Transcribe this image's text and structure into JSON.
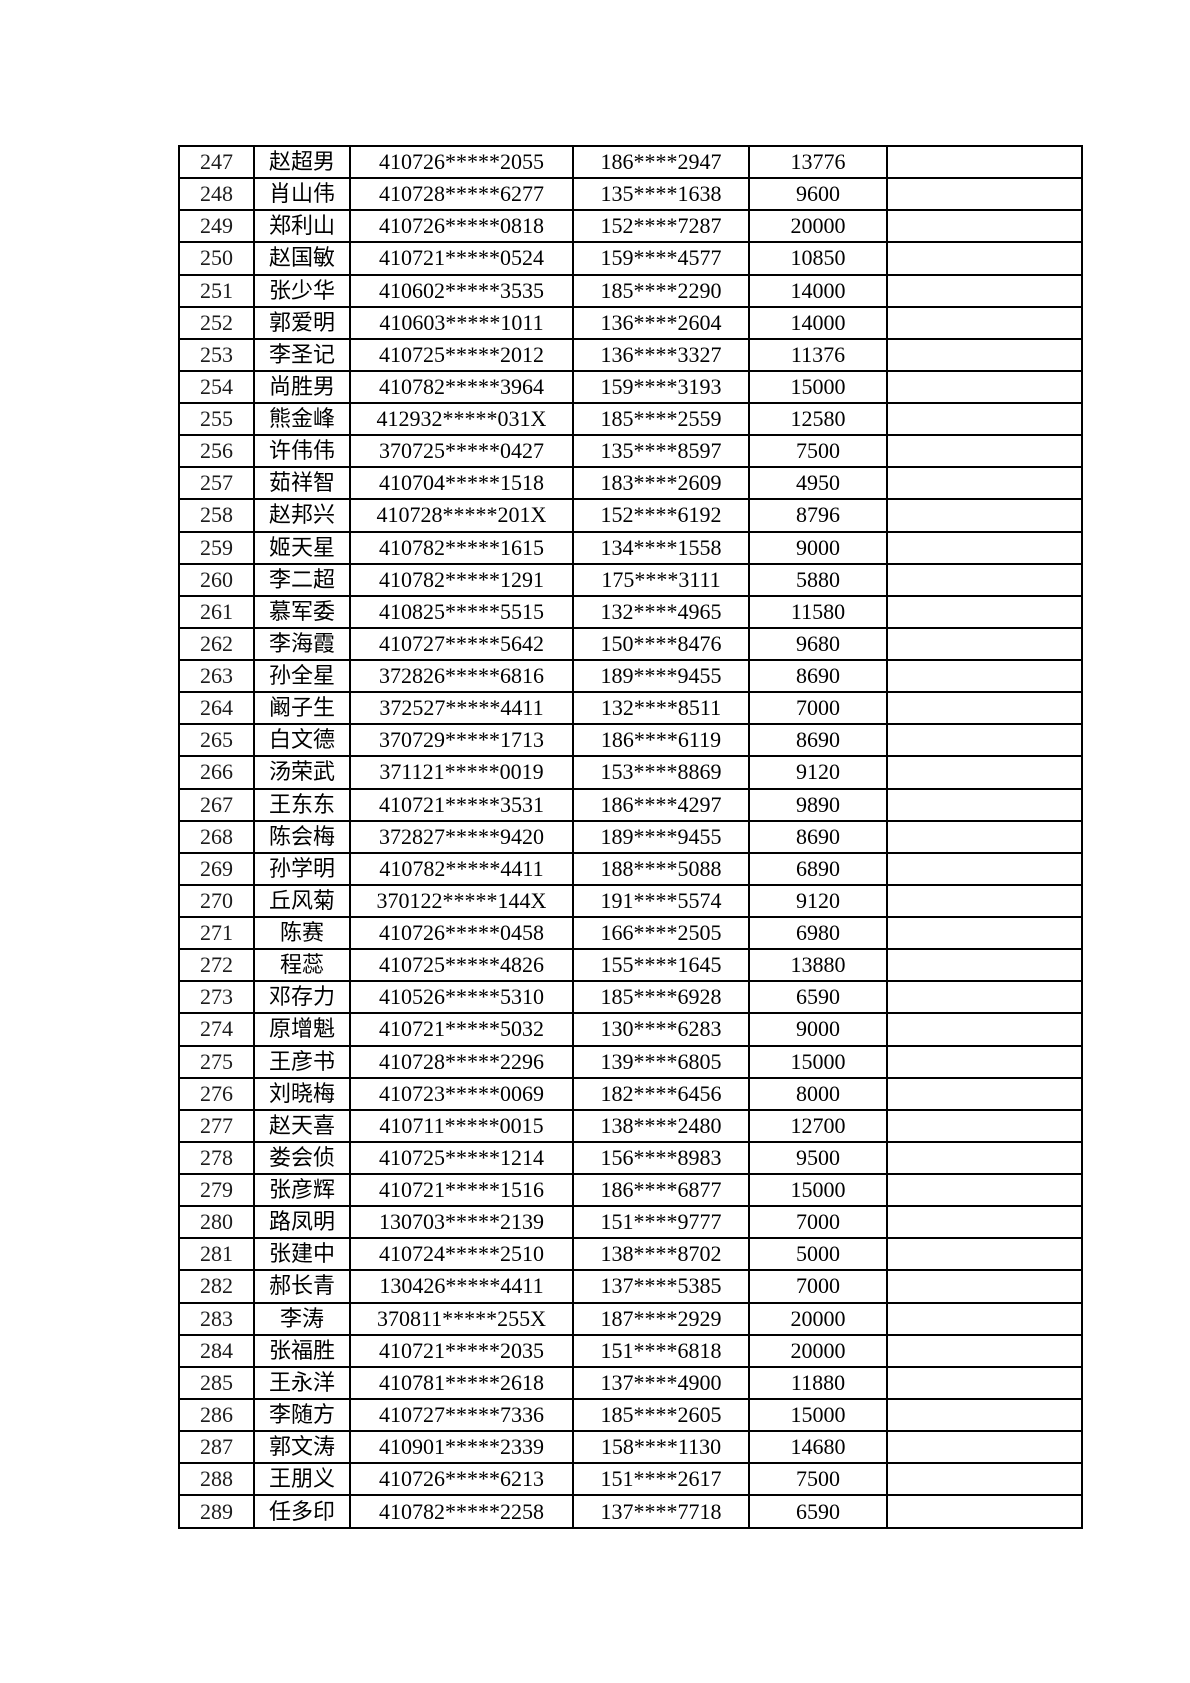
{
  "colors": {
    "page_background": "#ffffff",
    "table_border": "#000000",
    "text": "#000000"
  },
  "table": {
    "first_row_number": "247",
    "last_row_number": "289",
    "rows": [
      [
        "247",
        "赵超男",
        "410726*****2055",
        "186****2947",
        "13776",
        ""
      ],
      [
        "248",
        "肖山伟",
        "410728*****6277",
        "135****1638",
        "9600",
        ""
      ],
      [
        "249",
        "郑利山",
        "410726*****0818",
        "152****7287",
        "20000",
        ""
      ],
      [
        "250",
        "赵国敏",
        "410721*****0524",
        "159****4577",
        "10850",
        ""
      ],
      [
        "251",
        "张少华",
        "410602*****3535",
        "185****2290",
        "14000",
        ""
      ],
      [
        "252",
        "郭爱明",
        "410603*****1011",
        "136****2604",
        "14000",
        ""
      ],
      [
        "253",
        "李圣记",
        "410725*****2012",
        "136****3327",
        "11376",
        ""
      ],
      [
        "254",
        "尚胜男",
        "410782*****3964",
        "159****3193",
        "15000",
        ""
      ],
      [
        "255",
        "熊金峰",
        "412932*****031X",
        "185****2559",
        "12580",
        ""
      ],
      [
        "256",
        "许伟伟",
        "370725*****0427",
        "135****8597",
        "7500",
        ""
      ],
      [
        "257",
        "茹祥智",
        "410704*****1518",
        "183****2609",
        "4950",
        ""
      ],
      [
        "258",
        "赵邦兴",
        "410728*****201X",
        "152****6192",
        "8796",
        ""
      ],
      [
        "259",
        "姬天星",
        "410782*****1615",
        "134****1558",
        "9000",
        ""
      ],
      [
        "260",
        "李二超",
        "410782*****1291",
        "175****3111",
        "5880",
        ""
      ],
      [
        "261",
        "慕军委",
        "410825*****5515",
        "132****4965",
        "11580",
        ""
      ],
      [
        "262",
        "李海霞",
        "410727*****5642",
        "150****8476",
        "9680",
        ""
      ],
      [
        "263",
        "孙全星",
        "372826*****6816",
        "189****9455",
        "8690",
        ""
      ],
      [
        "264",
        "阚子生",
        "372527*****4411",
        "132****8511",
        "7000",
        ""
      ],
      [
        "265",
        "白文德",
        "370729*****1713",
        "186****6119",
        "8690",
        ""
      ],
      [
        "266",
        "汤荣武",
        "371121*****0019",
        "153****8869",
        "9120",
        ""
      ],
      [
        "267",
        "王东东",
        "410721*****3531",
        "186****4297",
        "9890",
        ""
      ],
      [
        "268",
        "陈会梅",
        "372827*****9420",
        "189****9455",
        "8690",
        ""
      ],
      [
        "269",
        "孙学明",
        "410782*****4411",
        "188****5088",
        "6890",
        ""
      ],
      [
        "270",
        "丘风菊",
        "370122*****144X",
        "191****5574",
        "9120",
        ""
      ],
      [
        "271",
        "陈赛",
        "410726*****0458",
        "166****2505",
        "6980",
        ""
      ],
      [
        "272",
        "程蕊",
        "410725*****4826",
        "155****1645",
        "13880",
        ""
      ],
      [
        "273",
        "邓存力",
        "410526*****5310",
        "185****6928",
        "6590",
        ""
      ],
      [
        "274",
        "原增魁",
        "410721*****5032",
        "130****6283",
        "9000",
        ""
      ],
      [
        "275",
        "王彦书",
        "410728*****2296",
        "139****6805",
        "15000",
        ""
      ],
      [
        "276",
        "刘晓梅",
        "410723*****0069",
        "182****6456",
        "8000",
        ""
      ],
      [
        "277",
        "赵天喜",
        "410711*****0015",
        "138****2480",
        "12700",
        ""
      ],
      [
        "278",
        "娄会侦",
        "410725*****1214",
        "156****8983",
        "9500",
        ""
      ],
      [
        "279",
        "张彦辉",
        "410721*****1516",
        "186****6877",
        "15000",
        ""
      ],
      [
        "280",
        "路凤明",
        "130703*****2139",
        "151****9777",
        "7000",
        ""
      ],
      [
        "281",
        "张建中",
        "410724*****2510",
        "138****8702",
        "5000",
        ""
      ],
      [
        "282",
        "郝长青",
        "130426*****4411",
        "137****5385",
        "7000",
        ""
      ],
      [
        "283",
        "李涛",
        "370811*****255X",
        "187****2929",
        "20000",
        ""
      ],
      [
        "284",
        "张福胜",
        "410721*****2035",
        "151****6818",
        "20000",
        ""
      ],
      [
        "285",
        "王永洋",
        "410781*****2618",
        "137****4900",
        "11880",
        ""
      ],
      [
        "286",
        "李随方",
        "410727*****7336",
        "185****2605",
        "15000",
        ""
      ],
      [
        "287",
        "郭文涛",
        "410901*****2339",
        "158****1130",
        "14680",
        ""
      ],
      [
        "288",
        "王朋义",
        "410726*****6213",
        "151****2617",
        "7500",
        ""
      ],
      [
        "289",
        "任多印",
        "410782*****2258",
        "137****7718",
        "6590",
        ""
      ]
    ]
  }
}
